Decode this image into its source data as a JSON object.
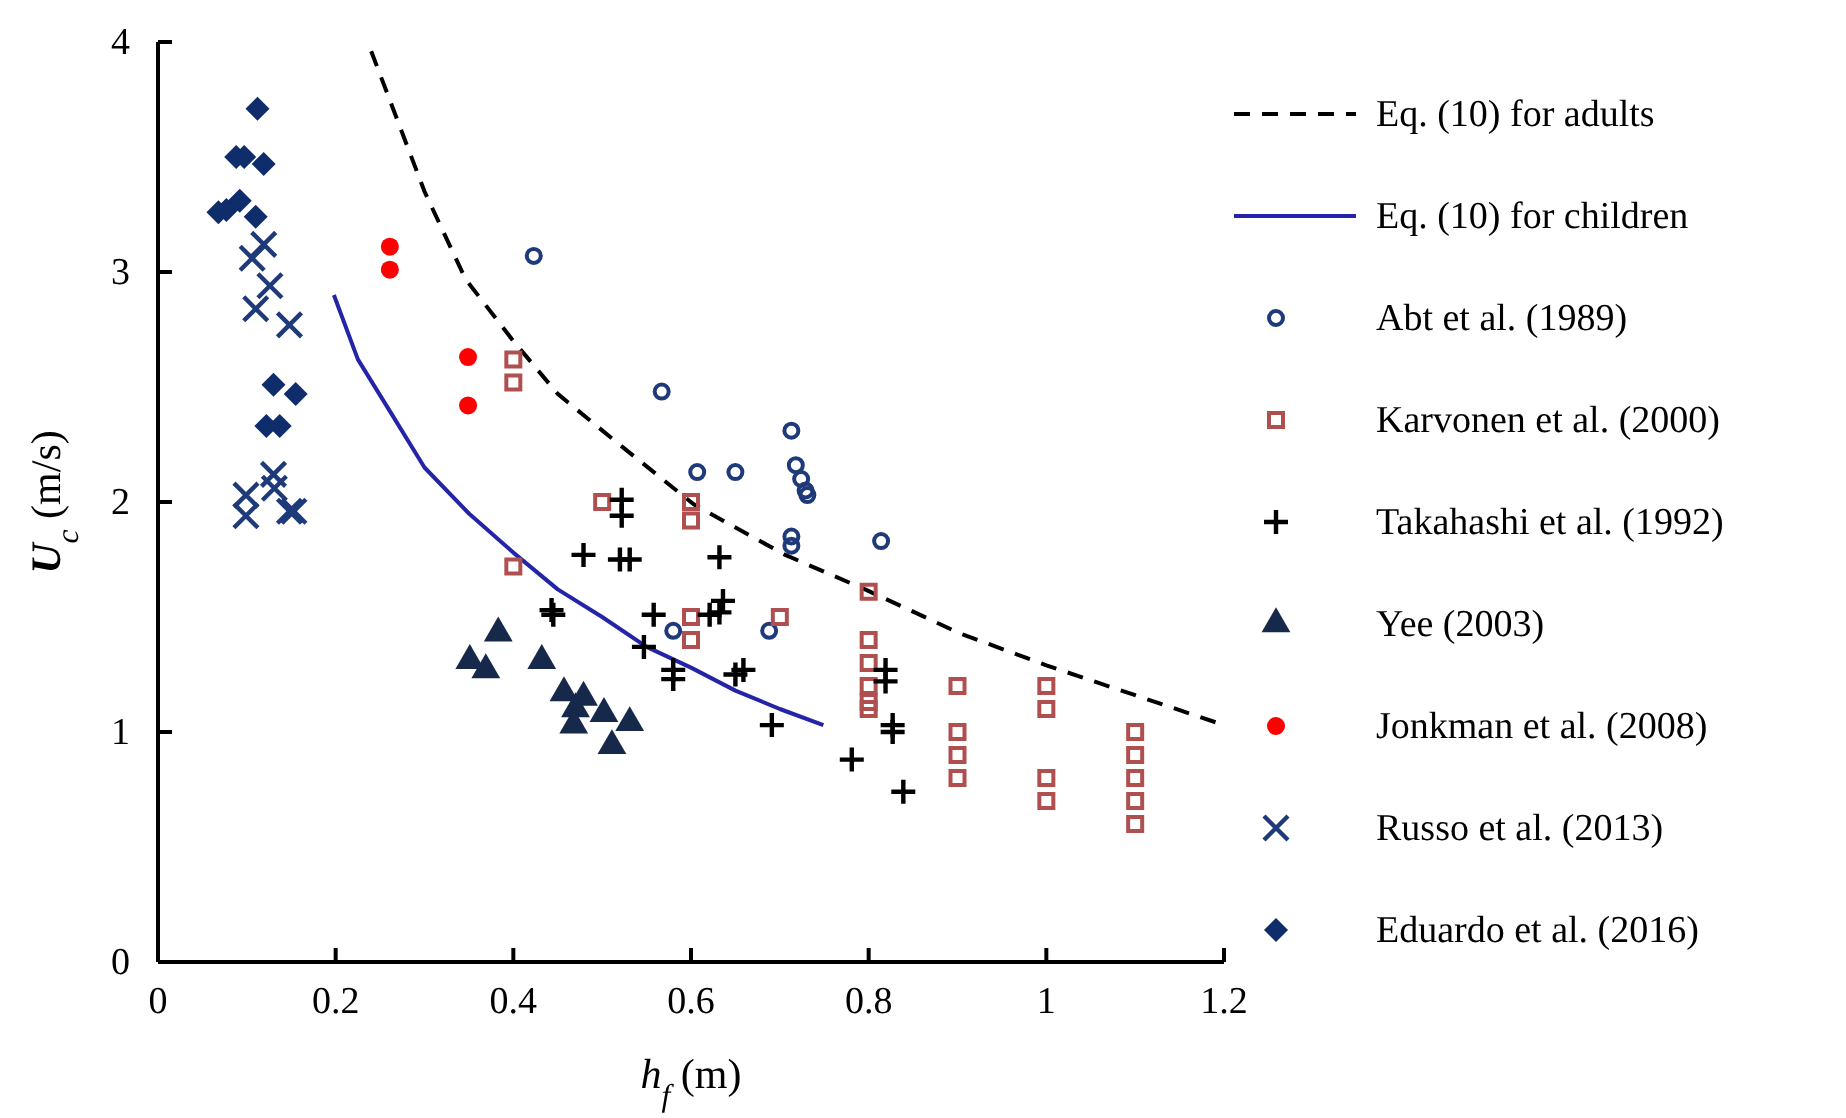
{
  "chart_data": {
    "type": "scatter",
    "xlabel": "h$_{f}$ (m)",
    "ylabel": "U$_{c}$ (m/s)",
    "xlim": [
      0,
      1.2
    ],
    "ylim": [
      0,
      4
    ],
    "xticks": [
      0,
      0.2,
      0.4,
      0.6,
      0.8,
      1,
      1.2
    ],
    "yticks": [
      0,
      1,
      2,
      3,
      4
    ],
    "grid": false,
    "legend": "right",
    "series": [
      {
        "name": "Eq. (10) for adults",
        "type": "line",
        "line_style": "dashed",
        "marker": "none",
        "color": "#000000",
        "x": [
          0.24,
          0.3,
          0.346,
          0.4,
          0.45,
          0.513,
          0.603,
          0.706,
          0.796,
          0.902,
          1.0,
          1.1,
          1.2
        ],
        "values": [
          3.96,
          3.35,
          2.97,
          2.7,
          2.47,
          2.27,
          1.99,
          1.77,
          1.62,
          1.43,
          1.29,
          1.16,
          1.03
        ]
      },
      {
        "name": "Eq. (10) for children",
        "type": "line",
        "line_style": "solid",
        "marker": "none",
        "color": "#2424a8",
        "x": [
          0.198,
          0.225,
          0.257,
          0.3,
          0.35,
          0.4,
          0.45,
          0.5,
          0.55,
          0.6,
          0.65,
          0.7,
          0.749
        ],
        "values": [
          2.9,
          2.62,
          2.42,
          2.15,
          1.95,
          1.78,
          1.62,
          1.5,
          1.37,
          1.28,
          1.18,
          1.1,
          1.03
        ]
      },
      {
        "name": "Abt et al. (1989)",
        "marker": "circle-open",
        "color": "#1f3a7a",
        "x": [
          0.423,
          0.567,
          0.713,
          0.607,
          0.65,
          0.718,
          0.724,
          0.729,
          0.731,
          0.713,
          0.713,
          0.814,
          0.58,
          0.688
        ],
        "values": [
          3.07,
          2.48,
          2.31,
          2.13,
          2.13,
          2.16,
          2.1,
          2.05,
          2.03,
          1.85,
          1.81,
          1.83,
          1.44,
          1.44
        ]
      },
      {
        "name": "Karvonen et al. (2000)",
        "marker": "square-open",
        "color": "#b04f4f",
        "x": [
          0.4,
          0.4,
          0.5,
          0.4,
          0.6,
          0.6,
          0.6,
          0.6,
          0.7,
          0.8,
          0.8,
          0.8,
          0.8,
          0.8,
          0.8,
          0.9,
          0.9,
          0.9,
          0.9,
          1.0,
          1.0,
          1.0,
          1.0,
          1.1,
          1.1,
          1.1,
          1.1,
          1.1
        ],
        "values": [
          2.62,
          2.52,
          2.0,
          1.72,
          2.0,
          1.92,
          1.5,
          1.4,
          1.5,
          1.61,
          1.4,
          1.3,
          1.2,
          1.13,
          1.1,
          1.2,
          1.0,
          0.9,
          0.8,
          1.2,
          1.1,
          0.8,
          0.7,
          1.0,
          0.9,
          0.8,
          0.7,
          0.6
        ]
      },
      {
        "name": "Takahashi et al. (1992)",
        "marker": "plus",
        "color": "#000000",
        "x": [
          0.522,
          0.522,
          0.479,
          0.52,
          0.531,
          0.632,
          0.636,
          0.443,
          0.445,
          0.558,
          0.621,
          0.632,
          0.547,
          0.58,
          0.58,
          0.65,
          0.659,
          0.819,
          0.819,
          0.691,
          0.827,
          0.827,
          0.781,
          0.839
        ],
        "values": [
          2.01,
          1.94,
          1.77,
          1.75,
          1.75,
          1.76,
          1.57,
          1.53,
          1.51,
          1.51,
          1.51,
          1.52,
          1.37,
          1.27,
          1.23,
          1.25,
          1.27,
          1.27,
          1.22,
          1.03,
          1.03,
          1.0,
          0.88,
          0.74
        ]
      },
      {
        "name": "Yee (2003)",
        "marker": "triangle",
        "color": "#17294a",
        "x": [
          0.383,
          0.351,
          0.369,
          0.432,
          0.457,
          0.479,
          0.47,
          0.502,
          0.468,
          0.531,
          0.511
        ],
        "values": [
          1.43,
          1.31,
          1.27,
          1.31,
          1.17,
          1.15,
          1.1,
          1.08,
          1.03,
          1.04,
          0.94
        ]
      },
      {
        "name": "Jonkman et al. (2008)",
        "marker": "circle",
        "color": "#ff0000",
        "x": [
          0.261,
          0.261,
          0.349,
          0.349
        ],
        "values": [
          3.11,
          3.01,
          2.63,
          2.42
        ]
      },
      {
        "name": "Russo et al. (2013)",
        "marker": "cross",
        "color": "#1f3a7a",
        "x": [
          0.119,
          0.106,
          0.126,
          0.11,
          0.148,
          0.13,
          0.131,
          0.099,
          0.099,
          0.148,
          0.153
        ],
        "values": [
          3.12,
          3.06,
          2.94,
          2.84,
          2.77,
          2.12,
          2.06,
          2.03,
          1.94,
          1.96,
          1.96
        ]
      },
      {
        "name": "Eduardo et al. (2016)",
        "marker": "diamond",
        "color": "#0f2d6b",
        "x": [
          0.112,
          0.088,
          0.097,
          0.119,
          0.068,
          0.092,
          0.077,
          0.11,
          0.13,
          0.155,
          0.122,
          0.137
        ],
        "values": [
          3.71,
          3.5,
          3.5,
          3.47,
          3.26,
          3.31,
          3.27,
          3.24,
          2.51,
          2.47,
          2.33,
          2.33
        ]
      }
    ]
  }
}
